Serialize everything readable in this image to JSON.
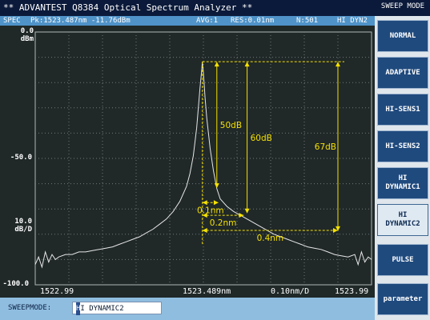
{
  "window": {
    "title": "** ADVANTEST Q8384 Optical Spectrum Analyzer **"
  },
  "header": {
    "spec": "SPEC",
    "peak": "Pk:1523.487nm  -11.76dBm",
    "avg": "AVG:1",
    "res": "RES:0.01nm",
    "points": "N:501",
    "mode": "HI DYN2"
  },
  "side_panel": {
    "title": "SWEEP MODE",
    "buttons": [
      {
        "label": "NORMAL",
        "active": false
      },
      {
        "label": "ADAPTIVE",
        "active": false
      },
      {
        "label": "HI-SENS1",
        "active": false
      },
      {
        "label": "HI-SENS2",
        "active": false
      },
      {
        "label": "HI\nDYNAMIC1",
        "active": false
      },
      {
        "label": "HI\nDYNAMIC2",
        "active": true
      },
      {
        "label": "PULSE",
        "active": false
      },
      {
        "label": "parameter",
        "active": false
      }
    ]
  },
  "status": {
    "label": "SWEEPMODE:",
    "cursor_char": "H",
    "value_rest": "I DYNAMIC2"
  },
  "chart_data": {
    "type": "line",
    "y_top_value": "0.0",
    "y_top_unit": "dBm",
    "y_mid_label": "-50.0",
    "y_scale_value": "10.0",
    "y_scale_unit": "dB/D",
    "y_bottom_label": "-100.0",
    "x_left_label": "1522.99",
    "x_center_label": "1523.489nm",
    "x_scale_label": "0.10nm/D",
    "x_right_label": "1523.99",
    "xlim": [
      1522.99,
      1523.99
    ],
    "ylim": [
      -100,
      0
    ],
    "grid": true,
    "trace_color": "#e6e6e6",
    "annotation_color": "#f5e100",
    "peak_x": 1523.487,
    "peak_y": -11.76,
    "annotations": {
      "drop_50": "50dB",
      "drop_60": "60dB",
      "drop_67": "67dB",
      "width_01": "0.1nm",
      "width_02": "0.2nm",
      "width_04": "0.4nm"
    },
    "annotation_geometry": {
      "drop_50": {
        "x": 1523.53,
        "y_end": -61.76
      },
      "drop_60": {
        "x": 1523.62,
        "y_end": -71.76
      },
      "drop_67": {
        "x": 1523.89,
        "y_end": -78.76
      },
      "width_01": {
        "y": -67.5,
        "x1": 1523.487,
        "x2": 1523.535
      },
      "width_02": {
        "y": -72.5,
        "x1": 1523.487,
        "x2": 1523.61
      },
      "width_04": {
        "y": -78.5,
        "x1": 1523.487,
        "x2": 1523.89
      },
      "baseline_x": 1523.487,
      "baseline_y_end": -84
    },
    "series": [
      {
        "x": [
          1522.99,
          1523.0,
          1523.01,
          1523.02,
          1523.03,
          1523.04,
          1523.05,
          1523.06,
          1523.08,
          1523.1,
          1523.12,
          1523.14,
          1523.16,
          1523.18,
          1523.2,
          1523.22,
          1523.24,
          1523.26,
          1523.28,
          1523.3,
          1523.32,
          1523.34,
          1523.36,
          1523.38,
          1523.4,
          1523.42,
          1523.44,
          1523.45,
          1523.46,
          1523.47,
          1523.48,
          1523.485,
          1523.487,
          1523.49,
          1523.495,
          1523.5,
          1523.51,
          1523.52,
          1523.53,
          1523.54,
          1523.56,
          1523.58,
          1523.6,
          1523.62,
          1523.64,
          1523.66,
          1523.68,
          1523.7,
          1523.72,
          1523.74,
          1523.76,
          1523.78,
          1523.8,
          1523.82,
          1523.84,
          1523.86,
          1523.88,
          1523.9,
          1523.92,
          1523.94,
          1523.95,
          1523.96,
          1523.97,
          1523.98,
          1523.99
        ],
        "y": [
          -92,
          -89,
          -93,
          -87,
          -91,
          -88,
          -90,
          -89,
          -88,
          -88,
          -87,
          -87,
          -86.5,
          -86,
          -85.5,
          -85,
          -84,
          -83,
          -82,
          -81,
          -79.5,
          -78,
          -76,
          -74,
          -71,
          -67,
          -61,
          -56,
          -49,
          -38,
          -22,
          -15,
          -11.76,
          -16,
          -26,
          -34,
          -46,
          -55,
          -62,
          -66,
          -69,
          -71,
          -72.5,
          -74,
          -75.5,
          -77,
          -78.5,
          -80,
          -81,
          -82,
          -83,
          -84,
          -85,
          -85.5,
          -86,
          -87,
          -88,
          -88.5,
          -89,
          -88,
          -92,
          -87,
          -91,
          -89,
          -90
        ]
      }
    ]
  }
}
